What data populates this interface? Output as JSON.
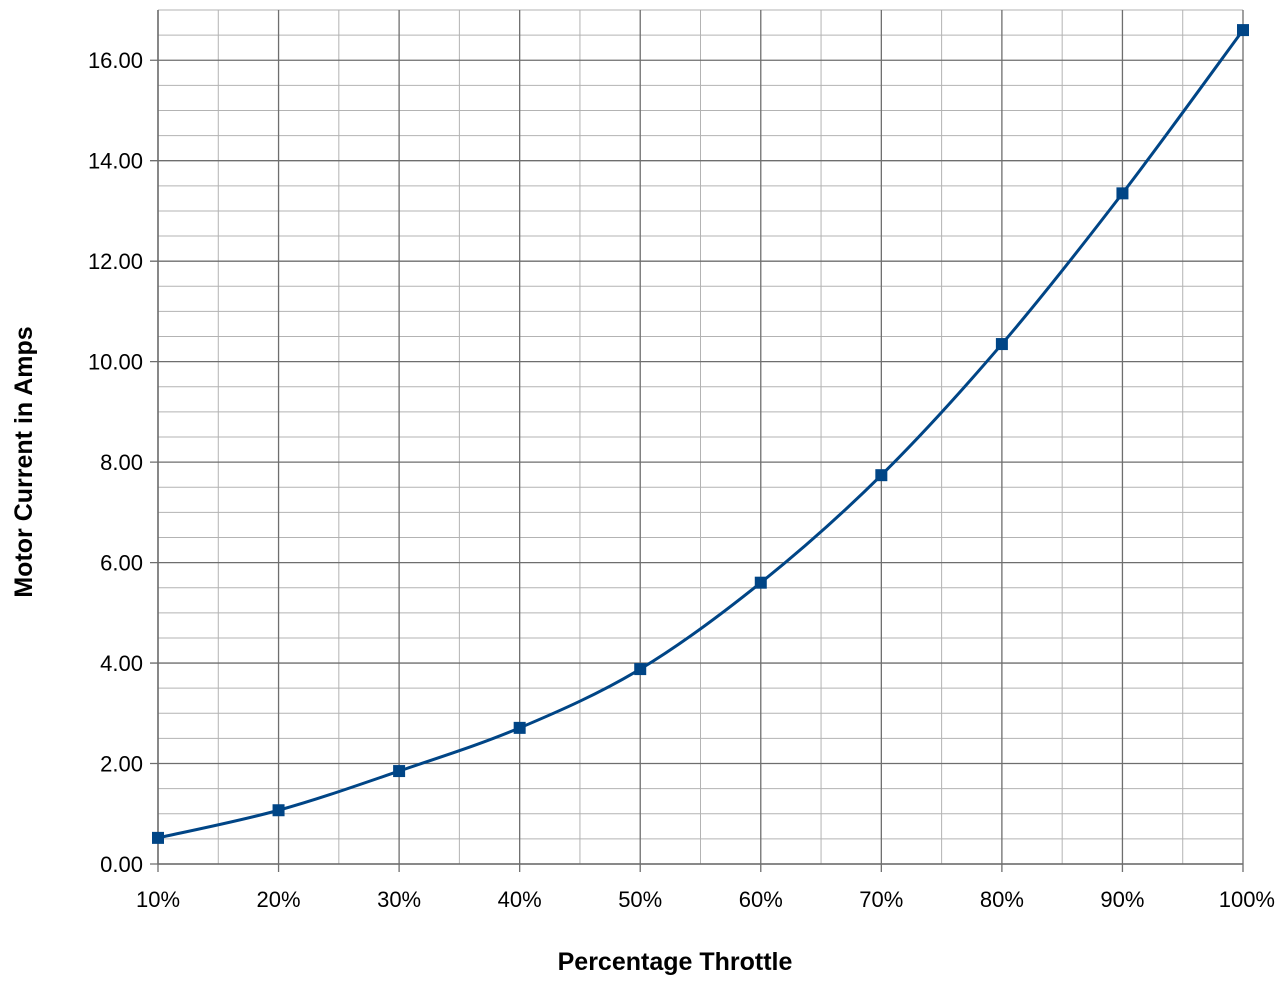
{
  "chart_data": {
    "type": "line",
    "title": "",
    "xlabel": "Percentage Throttle",
    "ylabel": "Motor Current in Amps",
    "categories": [
      "10%",
      "20%",
      "30%",
      "40%",
      "50%",
      "60%",
      "70%",
      "80%",
      "90%",
      "100%"
    ],
    "series": [
      {
        "values": [
          0.52,
          1.07,
          1.85,
          2.71,
          3.88,
          5.6,
          7.74,
          10.35,
          13.35,
          16.6
        ]
      }
    ],
    "ylim": [
      0,
      17
    ],
    "y_ticks": [
      0,
      2,
      4,
      6,
      8,
      10,
      12,
      14,
      16
    ],
    "y_tick_labels": [
      "0.00",
      "2.00",
      "4.00",
      "6.00",
      "8.00",
      "10.00",
      "12.00",
      "14.00",
      "16.00"
    ],
    "y_minor_step": 0.5,
    "x_minor_divisions": 2,
    "grid": true,
    "smooth": true,
    "marker": "square",
    "legend": "none",
    "colors": {
      "series": "#004586",
      "major_grid": "#6e6e6e",
      "minor_grid": "#b3b3b3",
      "axis": "#6e6e6e"
    }
  }
}
